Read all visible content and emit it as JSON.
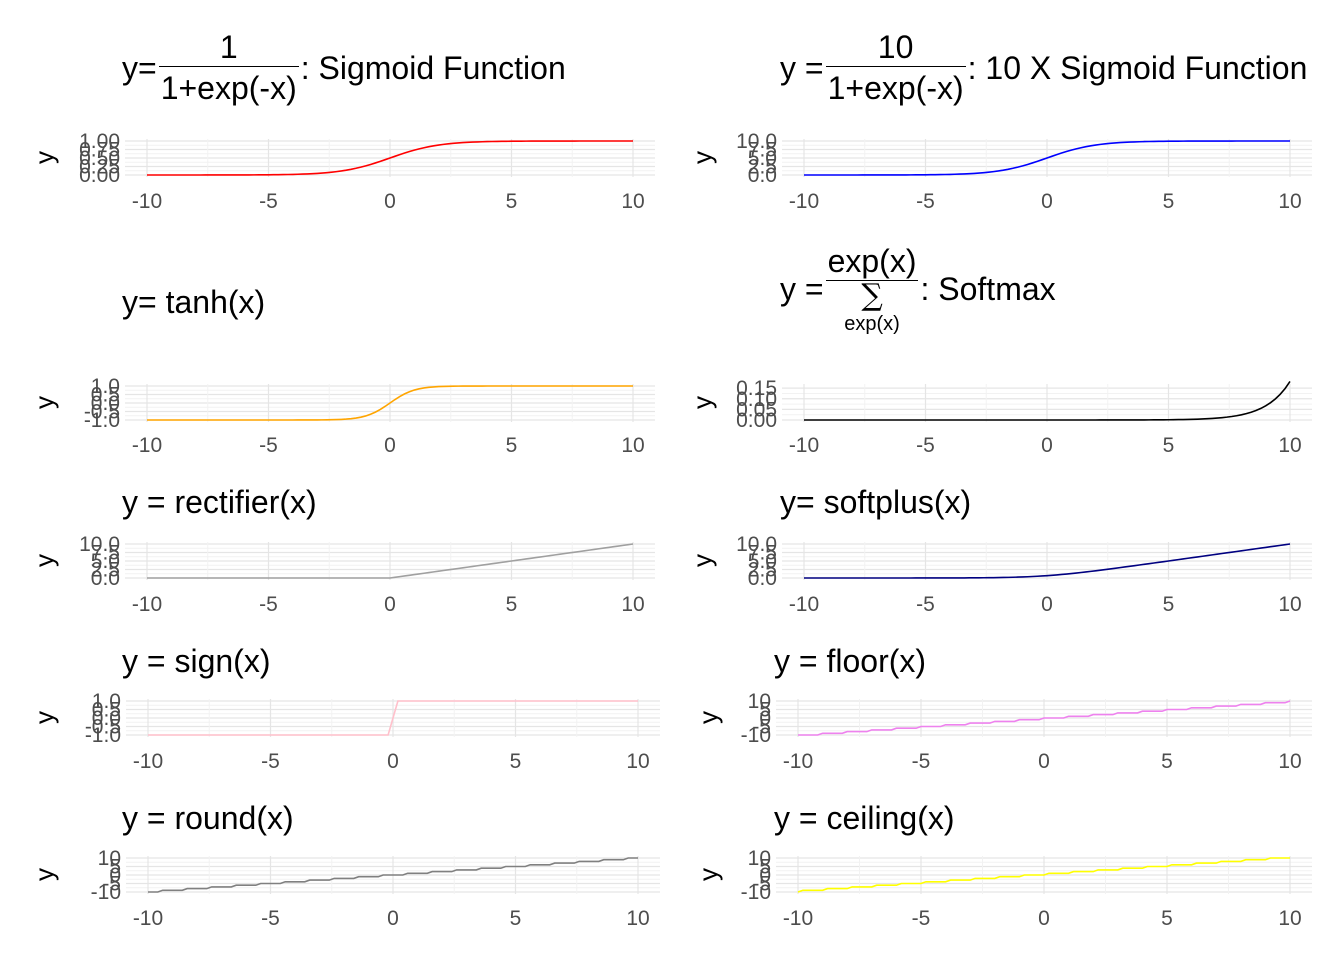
{
  "panels": [
    {
      "id": "sigmoid",
      "title": {
        "prefix": "y=",
        "num": "1",
        "den": "1+exp(-x)",
        "suffix": ": Sigmoid Function"
      },
      "ylabel": "y",
      "color": "#ff0000",
      "fn": "sigmoid",
      "ylim": [
        0,
        1
      ],
      "xticks": [
        "-10",
        "-5",
        "0",
        "5",
        "10"
      ],
      "yticks": [
        "0.00",
        "0.25",
        "0.50",
        "0.75",
        "1.00"
      ],
      "chart_data": {
        "type": "line",
        "x_range": [
          -10,
          10
        ],
        "ylim": [
          0,
          1
        ],
        "function": "1/(1+exp(-x))"
      }
    },
    {
      "id": "sigmoid10",
      "title": {
        "prefix": "y = ",
        "num": "10",
        "den": "1+exp(-x)",
        "suffix": ": 10 X Sigmoid Function"
      },
      "ylabel": "y",
      "color": "#0000ff",
      "fn": "sigmoid10",
      "ylim": [
        0,
        10
      ],
      "xticks": [
        "-10",
        "-5",
        "0",
        "5",
        "10"
      ],
      "yticks": [
        "0.0",
        "2.5",
        "5.0",
        "7.5",
        "10.0"
      ],
      "chart_data": {
        "type": "line",
        "x_range": [
          -10,
          10
        ],
        "ylim": [
          0,
          10
        ],
        "function": "10/(1+exp(-x))"
      }
    },
    {
      "id": "tanh",
      "title": {
        "text": "y= tanh(x)"
      },
      "ylabel": "y",
      "color": "#ffa500",
      "fn": "tanh",
      "ylim": [
        -1,
        1
      ],
      "xticks": [
        "-10",
        "-5",
        "0",
        "5",
        "10"
      ],
      "yticks": [
        "-1.0",
        "-0.5",
        "0.0",
        "0.5",
        "1.0"
      ],
      "chart_data": {
        "type": "line",
        "x_range": [
          -10,
          10
        ],
        "ylim": [
          -1,
          1
        ],
        "function": "tanh(x)"
      }
    },
    {
      "id": "softmax",
      "title": {
        "prefix": "y = ",
        "num": "exp(x)",
        "den_sigma": "∑",
        "den_sub": "exp(x)",
        "suffix": ": Softmax"
      },
      "ylabel": "y",
      "color": "#000000",
      "fn": "softmax",
      "ylim": [
        0,
        0.16
      ],
      "xticks": [
        "-10",
        "-5",
        "0",
        "5",
        "10"
      ],
      "yticks": [
        "0.00",
        "0.05",
        "0.10",
        "0.15"
      ],
      "chart_data": {
        "type": "line",
        "x_range": [
          -10,
          10
        ],
        "ylim": [
          0,
          0.16
        ],
        "function": "exp(x)/sum(exp(x))"
      }
    },
    {
      "id": "rectifier",
      "title": {
        "text": "y = rectifier(x)"
      },
      "ylabel": "y",
      "color": "#a0a0a0",
      "fn": "relu",
      "ylim": [
        0,
        10
      ],
      "xticks": [
        "-10",
        "-5",
        "0",
        "5",
        "10"
      ],
      "yticks": [
        "0.0",
        "2.5",
        "5.0",
        "7.5",
        "10.0"
      ],
      "chart_data": {
        "type": "line",
        "x_range": [
          -10,
          10
        ],
        "ylim": [
          0,
          10
        ],
        "function": "max(0,x)"
      }
    },
    {
      "id": "softplus",
      "title": {
        "text": "y= softplus(x)"
      },
      "ylabel": "y",
      "color": "#000080",
      "fn": "softplus",
      "ylim": [
        0,
        10
      ],
      "xticks": [
        "-10",
        "-5",
        "0",
        "5",
        "10"
      ],
      "yticks": [
        "0.0",
        "2.5",
        "5.0",
        "7.5",
        "10.0"
      ],
      "chart_data": {
        "type": "line",
        "x_range": [
          -10,
          10
        ],
        "ylim": [
          0,
          10
        ],
        "function": "log(1+exp(x))"
      }
    },
    {
      "id": "sign",
      "title": {
        "text": "y = sign(x)"
      },
      "ylabel": "y",
      "color": "#ffc0cb",
      "fn": "sign",
      "ylim": [
        -1,
        1
      ],
      "xticks": [
        "-10",
        "-5",
        "0",
        "5",
        "10"
      ],
      "yticks": [
        "-1.0",
        "-0.5",
        "0.0",
        "0.5",
        "1.0"
      ],
      "chart_data": {
        "type": "line",
        "x_range": [
          -10,
          10
        ],
        "ylim": [
          -1,
          1
        ],
        "function": "sign(x)"
      }
    },
    {
      "id": "floor",
      "title": {
        "text": "y = floor(x)"
      },
      "ylabel": "y",
      "color": "#ee82ee",
      "fn": "floor",
      "ylim": [
        -10,
        10
      ],
      "xticks": [
        "-10",
        "-5",
        "0",
        "5",
        "10"
      ],
      "yticks": [
        "-10",
        "-5",
        "0",
        "5",
        "10"
      ],
      "chart_data": {
        "type": "line",
        "x_range": [
          -10,
          10
        ],
        "ylim": [
          -10,
          10
        ],
        "function": "floor(x)"
      }
    },
    {
      "id": "round",
      "title": {
        "text": "y = round(x)"
      },
      "ylabel": "y",
      "color": "#808080",
      "fn": "round",
      "ylim": [
        -10,
        10
      ],
      "xticks": [
        "-10",
        "-5",
        "0",
        "5",
        "10"
      ],
      "yticks": [
        "-10",
        "-5",
        "0",
        "5",
        "10"
      ],
      "chart_data": {
        "type": "line",
        "x_range": [
          -10,
          10
        ],
        "ylim": [
          -10,
          10
        ],
        "function": "round(x)"
      }
    },
    {
      "id": "ceiling",
      "title": {
        "text": "y = ceiling(x)"
      },
      "ylabel": "y",
      "color": "#ffff00",
      "fn": "ceil",
      "ylim": [
        -10,
        10
      ],
      "xticks": [
        "-10",
        "-5",
        "0",
        "5",
        "10"
      ],
      "yticks": [
        "-10",
        "-5",
        "0",
        "5",
        "10"
      ],
      "chart_data": {
        "type": "line",
        "x_range": [
          -10,
          10
        ],
        "ylim": [
          -10,
          10
        ],
        "function": "ceiling(x)"
      }
    }
  ]
}
